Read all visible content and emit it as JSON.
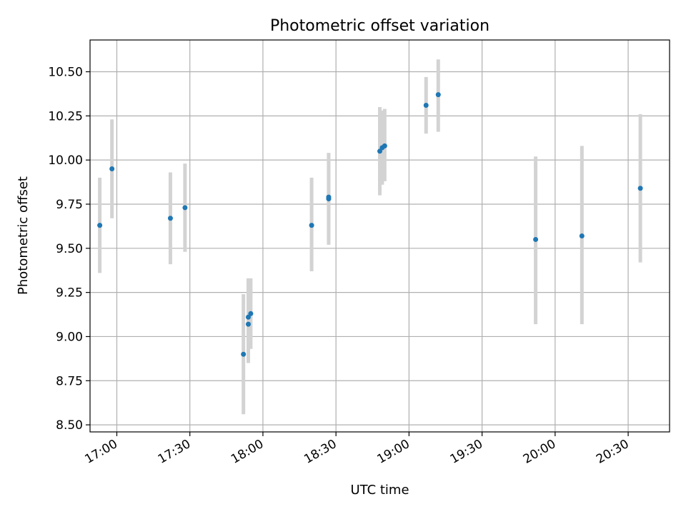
{
  "chart_data": {
    "type": "scatter",
    "title": "Photometric offset variation",
    "xlabel": "UTC time",
    "ylabel": "Photometric offset",
    "x_tick_labels": [
      "17:00",
      "17:30",
      "18:00",
      "18:30",
      "19:00",
      "19:30",
      "20:00",
      "20:30"
    ],
    "y_tick_labels": [
      "8.50",
      "8.75",
      "9.00",
      "9.25",
      "9.50",
      "9.75",
      "10.00",
      "10.25",
      "10.50"
    ],
    "grid": true,
    "xlim": [
      "16:49",
      "20:47"
    ],
    "ylim": [
      8.46,
      10.68
    ],
    "colors": {
      "point": "#1f77b4",
      "errorbar": "#d3d3d3",
      "grid": "#b0b0b0",
      "axes": "#000000"
    },
    "series": [
      {
        "points": [
          {
            "x": "16:53",
            "y": 9.63,
            "ylo": 9.36,
            "yhi": 9.9
          },
          {
            "x": "16:58",
            "y": 9.95,
            "ylo": 9.67,
            "yhi": 10.23
          },
          {
            "x": "17:22",
            "y": 9.67,
            "ylo": 9.41,
            "yhi": 9.93
          },
          {
            "x": "17:28",
            "y": 9.73,
            "ylo": 9.48,
            "yhi": 9.98
          },
          {
            "x": "17:52",
            "y": 8.9,
            "ylo": 8.56,
            "yhi": 9.24
          },
          {
            "x": "17:54",
            "y": 9.07,
            "ylo": 8.85,
            "yhi": 9.29
          },
          {
            "x": "17:54",
            "y": 9.11,
            "ylo": 8.9,
            "yhi": 9.33
          },
          {
            "x": "17:55",
            "y": 9.13,
            "ylo": 8.93,
            "yhi": 9.33
          },
          {
            "x": "18:20",
            "y": 9.63,
            "ylo": 9.37,
            "yhi": 9.9
          },
          {
            "x": "18:27",
            "y": 9.78,
            "ylo": 9.52,
            "yhi": 10.04
          },
          {
            "x": "18:27",
            "y": 9.79,
            "ylo": 9.54,
            "yhi": 10.04
          },
          {
            "x": "18:48",
            "y": 10.05,
            "ylo": 9.8,
            "yhi": 10.3
          },
          {
            "x": "18:49",
            "y": 10.07,
            "ylo": 9.86,
            "yhi": 10.28
          },
          {
            "x": "18:50",
            "y": 10.08,
            "ylo": 9.88,
            "yhi": 10.29
          },
          {
            "x": "19:07",
            "y": 10.31,
            "ylo": 10.15,
            "yhi": 10.47
          },
          {
            "x": "19:12",
            "y": 10.37,
            "ylo": 10.16,
            "yhi": 10.57
          },
          {
            "x": "19:52",
            "y": 9.55,
            "ylo": 9.07,
            "yhi": 10.02
          },
          {
            "x": "20:11",
            "y": 9.57,
            "ylo": 9.07,
            "yhi": 10.08
          },
          {
            "x": "20:35",
            "y": 9.84,
            "ylo": 9.42,
            "yhi": 10.26
          }
        ]
      }
    ]
  }
}
